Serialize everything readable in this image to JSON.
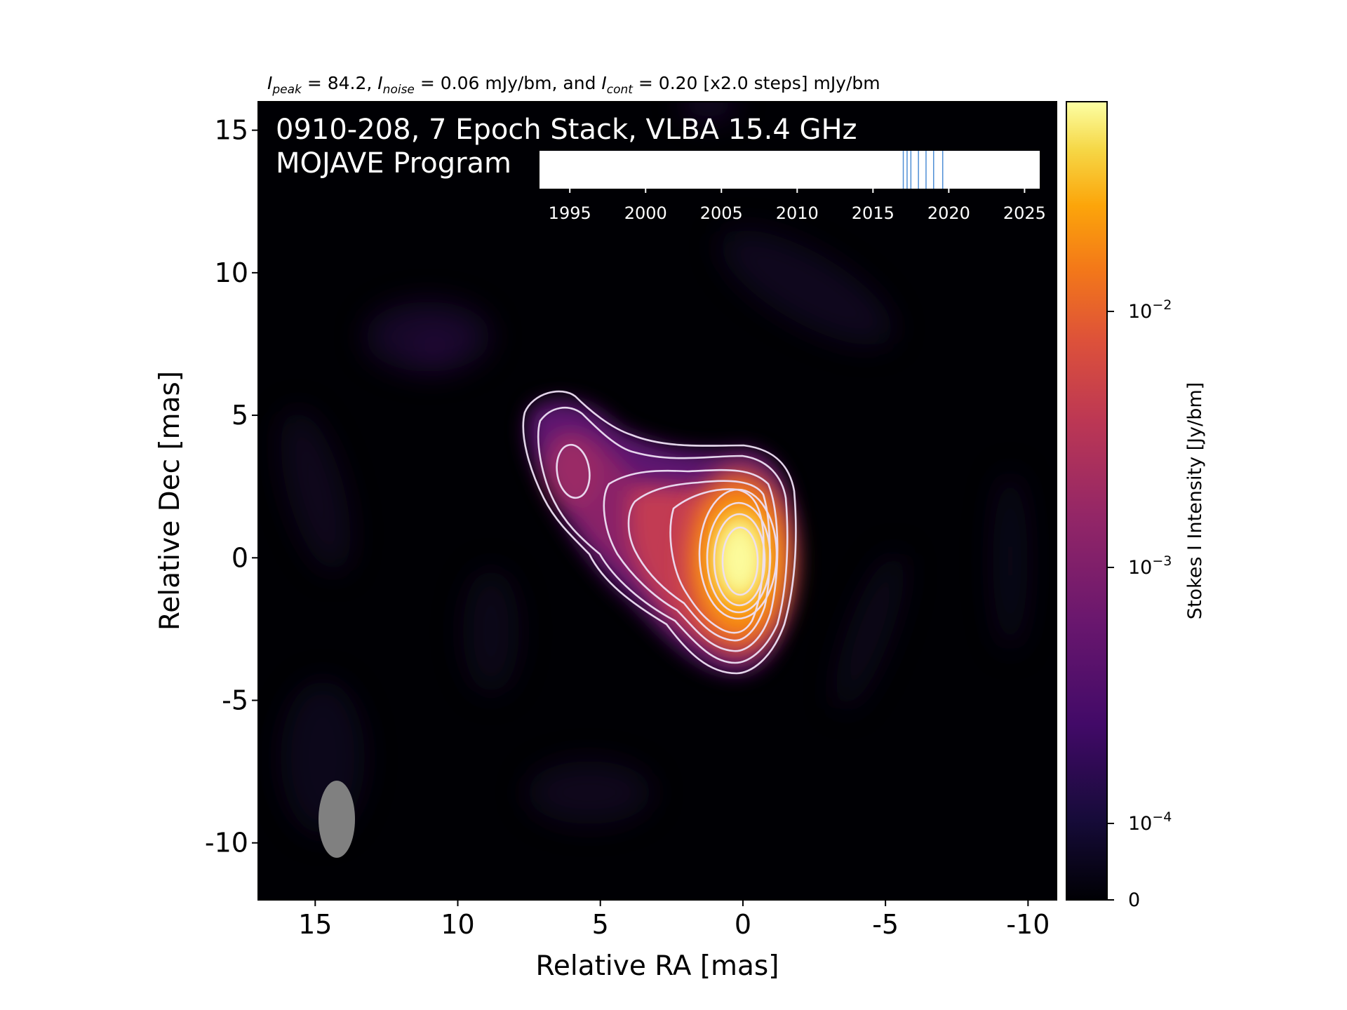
{
  "header": {
    "i_peak_sym": "I",
    "i_peak_sub": "peak",
    "i_peak_eq": " = 84.2, ",
    "i_noise_sym": "I",
    "i_noise_sub": "noise",
    "i_noise_eq": " = 0.06 mJy/bm, and ",
    "i_cont_sym": "I",
    "i_cont_sub": "cont",
    "i_cont_eq": " = 0.20 [x2.0 steps] mJy/bm"
  },
  "panel": {
    "title_line1": "0910-208, 7 Epoch Stack, VLBA 15.4 GHz",
    "title_line2": "MOJAVE Program"
  },
  "chart_data": [
    {
      "type": "heatmap",
      "title": "",
      "xlabel": "Relative RA [mas]",
      "ylabel": "Relative Dec [mas]",
      "xlim": [
        17,
        -11
      ],
      "ylim": [
        -12,
        16
      ],
      "x_ticks": [
        {
          "value": 15,
          "label": "15"
        },
        {
          "value": 10,
          "label": "10"
        },
        {
          "value": 5,
          "label": "5"
        },
        {
          "value": 0,
          "label": "0"
        },
        {
          "value": -5,
          "label": "-5"
        },
        {
          "value": -10,
          "label": "-10"
        }
      ],
      "y_ticks": [
        {
          "value": 15,
          "label": "15"
        },
        {
          "value": 10,
          "label": "10"
        },
        {
          "value": 5,
          "label": "5"
        },
        {
          "value": 0,
          "label": "0"
        },
        {
          "value": -5,
          "label": "-5"
        },
        {
          "value": -10,
          "label": "-10"
        }
      ],
      "peak_position_mas": [
        0,
        0
      ],
      "jet_knot_position_mas": [
        6,
        3
      ],
      "contour_levels_mjy_per_beam": [
        0.2,
        0.4,
        0.8,
        1.6,
        3.2,
        6.4,
        12.8,
        25.6,
        51.2
      ],
      "beam": {
        "center_mas": [
          14.2,
          -9.5
        ],
        "major_mas": 2.7,
        "minor_mas": 1.3,
        "pa_deg": 0
      },
      "colorbar": {
        "label": "Stokes I Intensity [Jy/bm]",
        "colormap": "inferno",
        "scale": "log",
        "ticks": [
          {
            "value": 0.01,
            "base": "10",
            "exp": "−2"
          },
          {
            "value": 0.001,
            "base": "10",
            "exp": "−3"
          },
          {
            "value": 0.0001,
            "base": "10",
            "exp": "−4"
          },
          {
            "value": 0,
            "base": "0",
            "exp": ""
          }
        ]
      },
      "grid": false,
      "legend": "none"
    },
    {
      "type": "scatter",
      "title": "",
      "xlim": [
        1993,
        2026
      ],
      "x_ticks": [
        1995,
        2000,
        2005,
        2010,
        2015,
        2020,
        2025
      ],
      "epochs": [
        2017.0,
        2017.25,
        2017.5,
        2018.0,
        2018.5,
        2019.0,
        2019.6
      ],
      "marker": "vertical line",
      "marker_color": "#4f8fd6"
    }
  ]
}
